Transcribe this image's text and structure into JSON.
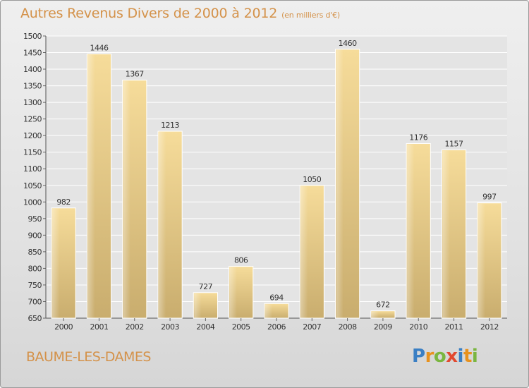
{
  "title": "Autres Revenus Divers de 2000 à 2012",
  "title_unit": "(en milliers d'€)",
  "place": "BAUME-LES-DAMES",
  "logo": {
    "letters": [
      {
        "ch": "P",
        "color": "#3a7fc4"
      },
      {
        "ch": "r",
        "color": "#e8921e"
      },
      {
        "ch": "o",
        "color": "#7ab640"
      },
      {
        "ch": "x",
        "color": "#e2492f"
      },
      {
        "ch": "i",
        "color": "#3a7fc4"
      },
      {
        "ch": "t",
        "color": "#e8921e"
      },
      {
        "ch": "i",
        "color": "#7ab640"
      }
    ]
  },
  "colors": {
    "title": "#d4924a",
    "bar_light": "#f6dc9a",
    "bar_dark": "#c9ad6e",
    "axis_text": "#333333"
  },
  "chart_data": {
    "type": "bar",
    "categories": [
      "2000",
      "2001",
      "2002",
      "2003",
      "2004",
      "2005",
      "2006",
      "2007",
      "2008",
      "2009",
      "2010",
      "2011",
      "2012"
    ],
    "values": [
      982,
      1446,
      1367,
      1213,
      727,
      806,
      694,
      1050,
      1460,
      672,
      1176,
      1157,
      997
    ],
    "ylim": [
      650,
      1500
    ],
    "yticks": [
      650,
      700,
      750,
      800,
      850,
      900,
      950,
      1000,
      1050,
      1100,
      1150,
      1200,
      1250,
      1300,
      1350,
      1400,
      1450,
      1500
    ],
    "grid": true
  }
}
